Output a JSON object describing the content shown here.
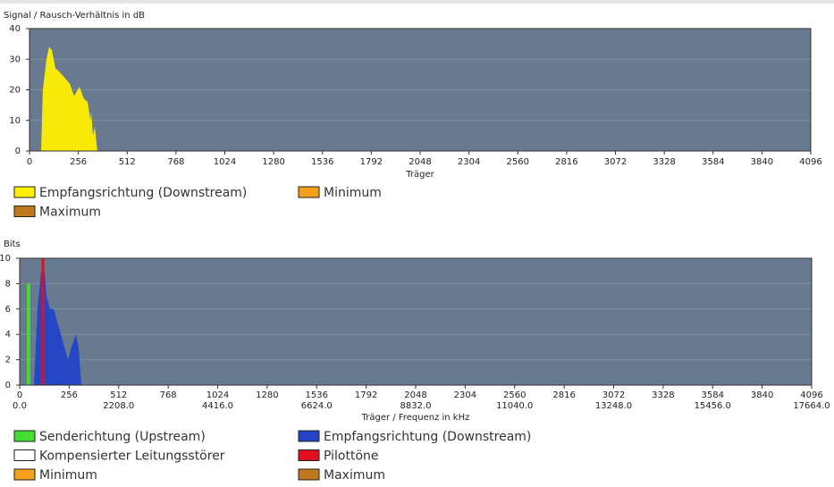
{
  "chart_data": [
    {
      "type": "area",
      "title": "Signal / Rausch-Verhältnis in dB",
      "x_label": "Träger",
      "xlim": [
        0,
        4096
      ],
      "xticks": [
        0,
        256,
        512,
        768,
        1024,
        1280,
        1536,
        1792,
        2048,
        2304,
        2560,
        2816,
        3072,
        3328,
        3584,
        3840,
        4096
      ],
      "ylim": [
        0,
        40
      ],
      "yticks": [
        0,
        10,
        20,
        30,
        40
      ],
      "grid": true,
      "series": [
        {
          "name": "Empfangsrichtung (Downstream)",
          "color": "#fff000",
          "x": [
            61,
            70,
            89,
            103,
            117,
            136,
            155,
            183,
            211,
            234,
            262,
            286,
            305,
            319,
            323,
            333,
            342,
            356
          ],
          "values": [
            0,
            20,
            30,
            34,
            33,
            27,
            26,
            24,
            22,
            18,
            21,
            17,
            16,
            10,
            13,
            5,
            8,
            0
          ]
        },
        {
          "name": "Minimum",
          "color": "#f5a01a",
          "x": [],
          "values": []
        },
        {
          "name": "Maximum",
          "color": "#c0781e",
          "x": [],
          "values": []
        }
      ]
    },
    {
      "type": "area",
      "title": "Bits",
      "x_label": "Träger / Frequenz in kHz",
      "xlim": [
        0,
        4096
      ],
      "xticks": [
        0,
        256,
        512,
        768,
        1024,
        1280,
        1536,
        1792,
        2048,
        2304,
        2560,
        2816,
        3072,
        3328,
        3584,
        3840,
        4096
      ],
      "x2lim": [
        0,
        17664
      ],
      "x2ticks": [
        {
          "value": 0,
          "label": "0.0"
        },
        {
          "value": 2208,
          "label": "2208.0"
        },
        {
          "value": 4416,
          "label": "4416.0"
        },
        {
          "value": 6624,
          "label": "6624.0"
        },
        {
          "value": 8832,
          "label": "8832.0"
        },
        {
          "value": 11040,
          "label": "11040.0"
        },
        {
          "value": 13248,
          "label": "13248.0"
        },
        {
          "value": 15456,
          "label": "15456.0"
        },
        {
          "value": 17664,
          "label": "17664.0"
        }
      ],
      "ylim": [
        0,
        10
      ],
      "yticks": [
        0,
        2,
        4,
        6,
        8,
        10
      ],
      "grid": true,
      "series": [
        {
          "name": "Senderichtung (Upstream)",
          "color": "#44dd33",
          "x": [
            37,
            37,
            55,
            55
          ],
          "values": [
            0,
            8,
            8,
            0
          ]
        },
        {
          "name": "Empfangsrichtung (Downstream)",
          "color": "#2344c8",
          "x": [
            74,
            92,
            111,
            129,
            139,
            157,
            176,
            194,
            213,
            231,
            250,
            268,
            291,
            305,
            319
          ],
          "values": [
            0,
            6,
            9,
            9,
            7,
            6,
            6,
            5,
            4,
            3,
            2,
            3,
            4,
            3,
            0
          ]
        },
        {
          "name": "Kompensierter Leitungsstörer",
          "color": "#ffffff",
          "x": [],
          "values": []
        },
        {
          "name": "Pilottöne",
          "color": "#e0101e",
          "kind": "bar",
          "x": [
            120
          ],
          "values": [
            10
          ]
        },
        {
          "name": "Minimum",
          "color": "#f5a01a",
          "x": [],
          "values": []
        },
        {
          "name": "Maximum",
          "color": "#c0781e",
          "x": [],
          "values": []
        }
      ]
    }
  ]
}
